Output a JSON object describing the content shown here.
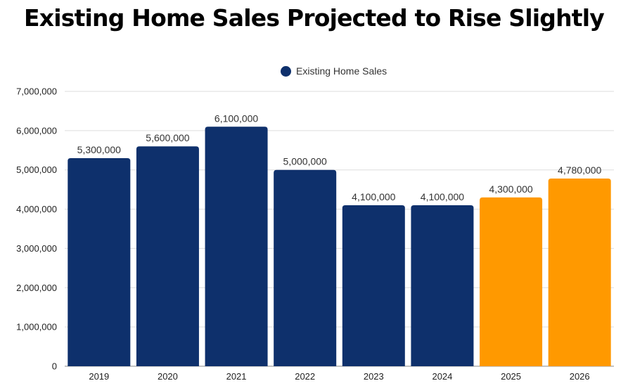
{
  "chart_data": {
    "type": "bar",
    "title": "Existing Home Sales Projected to Rise Slightly",
    "categories": [
      "2019",
      "2020",
      "2021",
      "2022",
      "2023",
      "2024",
      "2025",
      "2026"
    ],
    "series": [
      {
        "name": "Existing Home Sales",
        "values": [
          5300000,
          5600000,
          6100000,
          5000000,
          4100000,
          4100000,
          4300000,
          4780000
        ],
        "data_labels": [
          "5,300,000",
          "5,600,000",
          "6,100,000",
          "5,000,000",
          "4,100,000",
          "4,100,000",
          "4,300,000",
          "4,780,000"
        ]
      }
    ],
    "colors": {
      "actual": "#0e306c",
      "projected": "#ff9900"
    },
    "projected_categories": [
      "2025",
      "2026"
    ],
    "ylim": [
      0,
      7000000
    ],
    "yticks": [
      0,
      1000000,
      2000000,
      3000000,
      4000000,
      5000000,
      6000000,
      7000000
    ],
    "ytick_labels": [
      "0",
      "1,000,000",
      "2,000,000",
      "3,000,000",
      "4,000,000",
      "5,000,000",
      "6,000,000",
      "7,000,000"
    ],
    "xlabel": "",
    "ylabel": "",
    "grid": true,
    "legend_position": "top-center"
  }
}
